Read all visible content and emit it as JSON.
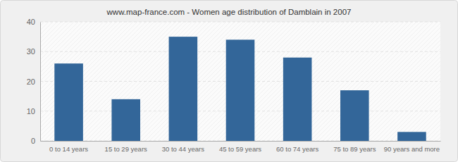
{
  "chart_data": {
    "type": "bar",
    "title": "www.map-france.com - Women age distribution of Damblain in 2007",
    "categories": [
      "0 to 14 years",
      "15 to 29 years",
      "30 to 44 years",
      "45 to 59 years",
      "60 to 74 years",
      "75 to 89 years",
      "90 years and more"
    ],
    "values": [
      26,
      14,
      35,
      34,
      28,
      17,
      3
    ],
    "color": "#336699",
    "ylim": [
      0,
      40
    ],
    "yticks": [
      0,
      10,
      20,
      30,
      40
    ],
    "grid": true
  }
}
